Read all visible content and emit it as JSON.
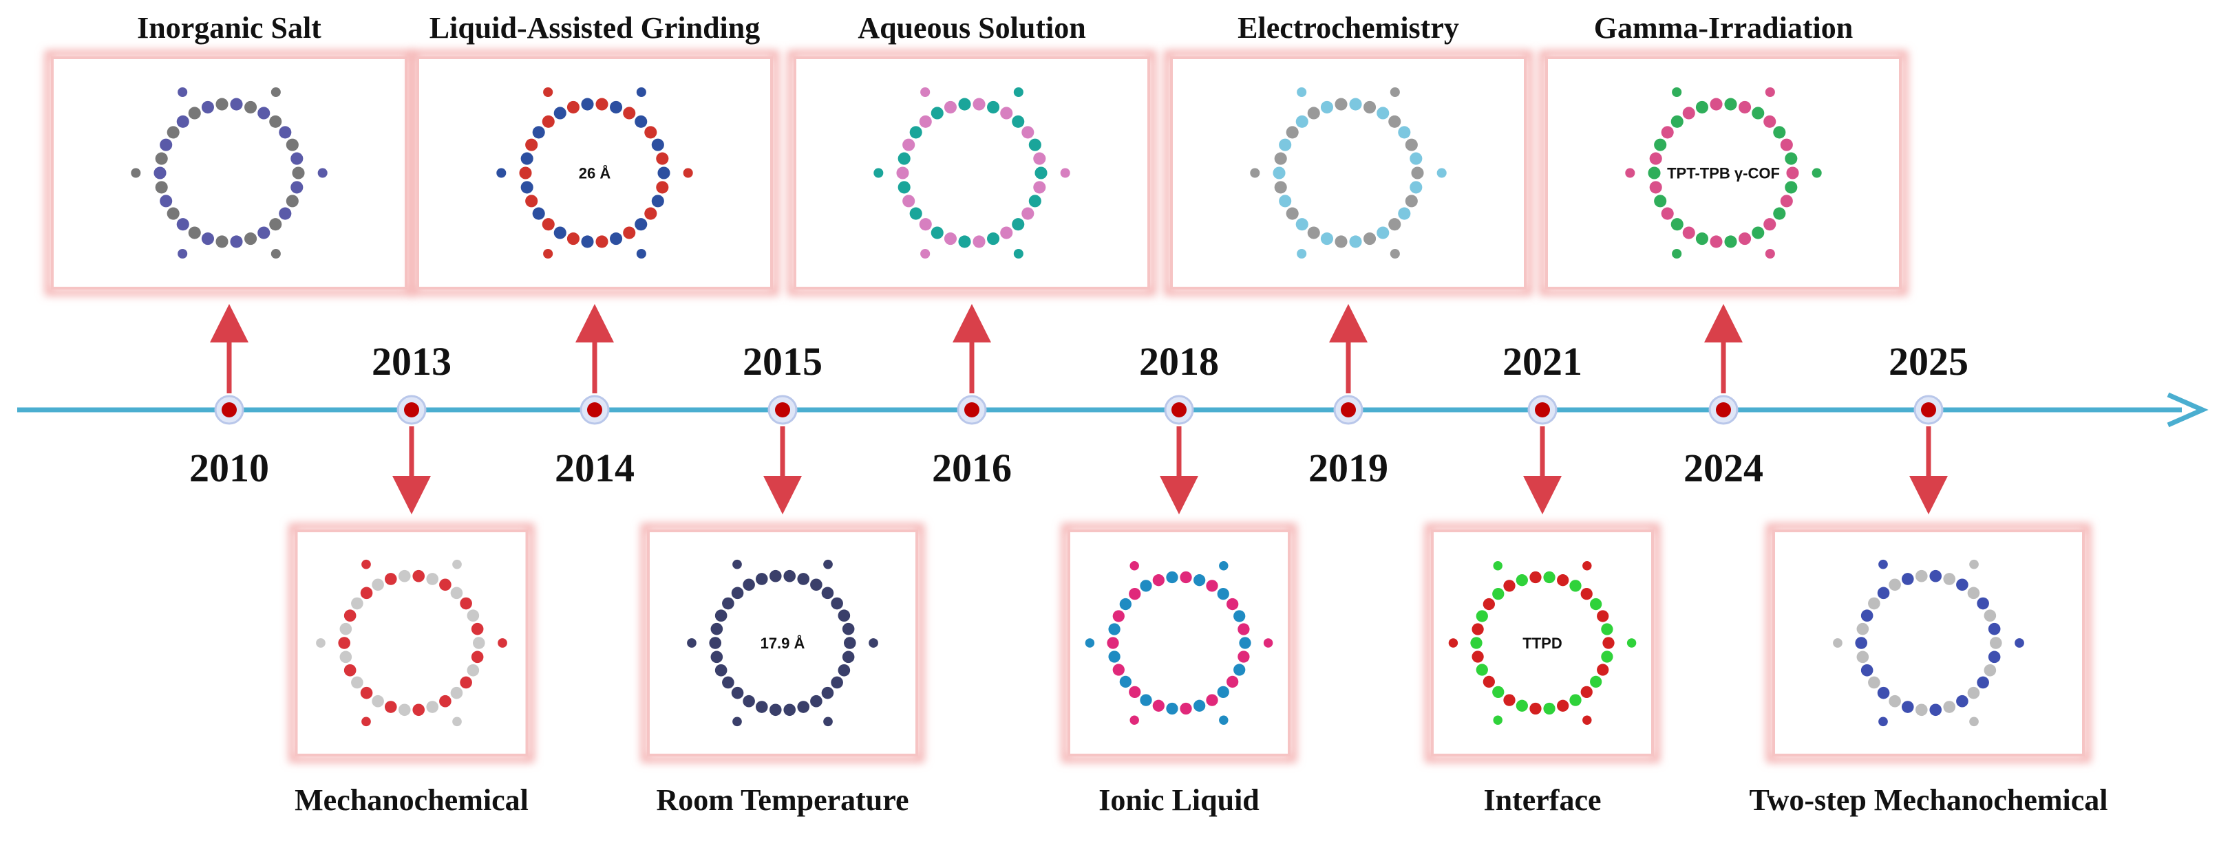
{
  "upper_events": [
    {
      "year": "2010",
      "label": "Inorganic Salt"
    },
    {
      "year": "2014",
      "label": "Liquid-Assisted Grinding",
      "image_text": "26 Å"
    },
    {
      "year": "2016",
      "label": "Aqueous Solution"
    },
    {
      "year": "2019",
      "label": "Electrochemistry"
    },
    {
      "year": "2024",
      "label": "Gamma-Irradiation",
      "image_text": "TPT-TPB γ-COF"
    }
  ],
  "lower_events": [
    {
      "year": "2013",
      "label": "Mechanochemical"
    },
    {
      "year": "2015",
      "label": "Room Temperature",
      "image_text": "17.9 Å"
    },
    {
      "year": "2018",
      "label": "Ionic Liquid"
    },
    {
      "year": "2021",
      "label": "Interface",
      "image_text": "TTPD"
    },
    {
      "year": "2025",
      "label": "Two-step Mechanochemical"
    }
  ]
}
